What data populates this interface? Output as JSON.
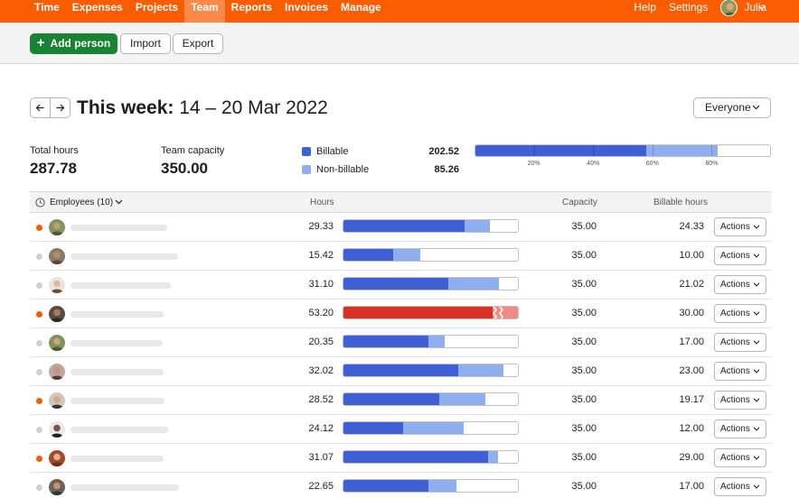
{
  "nav": {
    "items": [
      {
        "label": "Time",
        "active": false
      },
      {
        "label": "Expenses",
        "active": false
      },
      {
        "label": "Projects",
        "active": false
      },
      {
        "label": "Team",
        "active": true
      },
      {
        "label": "Reports",
        "active": false
      },
      {
        "label": "Invoices",
        "active": false
      },
      {
        "label": "Manage",
        "active": false
      }
    ],
    "help": "Help",
    "settings": "Settings",
    "user": "Julia"
  },
  "toolbar": {
    "add_label": "Add person",
    "import_label": "Import",
    "export_label": "Export"
  },
  "week": {
    "title_bold": "This week:",
    "range": "14 – 20 Mar 2022",
    "filter": "Everyone"
  },
  "summary": {
    "total_hours_label": "Total hours",
    "total_hours": "287.78",
    "capacity_label": "Team capacity",
    "capacity": "350.00",
    "billable_label": "Billable",
    "billable": "202.52",
    "nonbillable_label": "Non-billable",
    "nonbillable": "85.26",
    "bar": {
      "billable_pct": 57.86,
      "nonbillable_pct": 24.36,
      "ticks": [
        "20%",
        "40%",
        "60%",
        "80%"
      ]
    }
  },
  "colors": {
    "brand": "#fa5d00",
    "billable": "#3f5fd6",
    "nonbillable": "#8eaef0",
    "over": "#d93025",
    "over_light": "#f08a82",
    "add_button": "#188433",
    "dot_active": "#fa5d00",
    "dot_idle": "#d0d0d0"
  },
  "table": {
    "employees_label": "Employees (10)",
    "hours_label": "Hours",
    "capacity_label": "Capacity",
    "billable_label": "Billable hours",
    "actions_label": "Actions",
    "rows": [
      {
        "hours": "29.33",
        "capacity": "35.00",
        "billable": "24.33",
        "billable_frac": 0.695,
        "total_frac": 0.838,
        "over": false,
        "active": true
      },
      {
        "hours": "15.42",
        "capacity": "35.00",
        "billable": "10.00",
        "billable_frac": 0.286,
        "total_frac": 0.441,
        "over": false,
        "active": false
      },
      {
        "hours": "31.10",
        "capacity": "35.00",
        "billable": "21.02",
        "billable_frac": 0.601,
        "total_frac": 0.889,
        "over": false,
        "active": false
      },
      {
        "hours": "53.20",
        "capacity": "35.00",
        "billable": "30.00",
        "billable_frac": 0.857,
        "total_frac": 1.0,
        "over": true,
        "active": true
      },
      {
        "hours": "20.35",
        "capacity": "35.00",
        "billable": "17.00",
        "billable_frac": 0.486,
        "total_frac": 0.581,
        "over": false,
        "active": false
      },
      {
        "hours": "32.02",
        "capacity": "35.00",
        "billable": "23.00",
        "billable_frac": 0.657,
        "total_frac": 0.915,
        "over": false,
        "active": false
      },
      {
        "hours": "28.52",
        "capacity": "35.00",
        "billable": "19.17",
        "billable_frac": 0.548,
        "total_frac": 0.815,
        "over": false,
        "active": true
      },
      {
        "hours": "24.12",
        "capacity": "35.00",
        "billable": "12.00",
        "billable_frac": 0.343,
        "total_frac": 0.689,
        "over": false,
        "active": false
      },
      {
        "hours": "31.07",
        "capacity": "35.00",
        "billable": "29.00",
        "billable_frac": 0.829,
        "total_frac": 0.888,
        "over": false,
        "active": true
      },
      {
        "hours": "22.65",
        "capacity": "35.00",
        "billable": "17.00",
        "billable_frac": 0.486,
        "total_frac": 0.647,
        "over": false,
        "active": false
      }
    ]
  }
}
